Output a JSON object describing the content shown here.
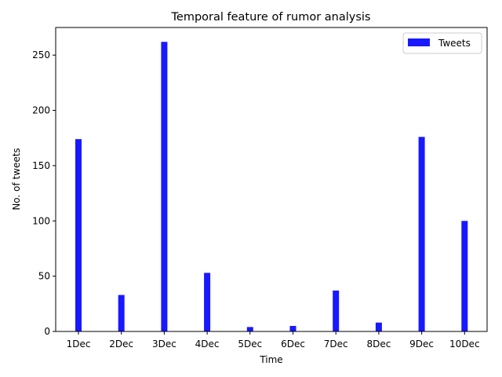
{
  "chart_data": {
    "type": "bar",
    "title": "Temporal feature of rumor analysis",
    "xlabel": "Time",
    "ylabel": "No. of tweets",
    "categories": [
      "1Dec",
      "2Dec",
      "3Dec",
      "4Dec",
      "5Dec",
      "6Dec",
      "7Dec",
      "8Dec",
      "9Dec",
      "10Dec"
    ],
    "series": [
      {
        "name": "Tweets",
        "values": [
          174,
          33,
          262,
          53,
          4,
          5,
          37,
          8,
          176,
          100
        ],
        "color": "#1919ff"
      }
    ],
    "ylim": [
      0,
      275
    ],
    "yticks": [
      0,
      50,
      100,
      150,
      200,
      250
    ],
    "legend": {
      "position": "top-right",
      "entries": [
        "Tweets"
      ]
    },
    "grid": false
  }
}
